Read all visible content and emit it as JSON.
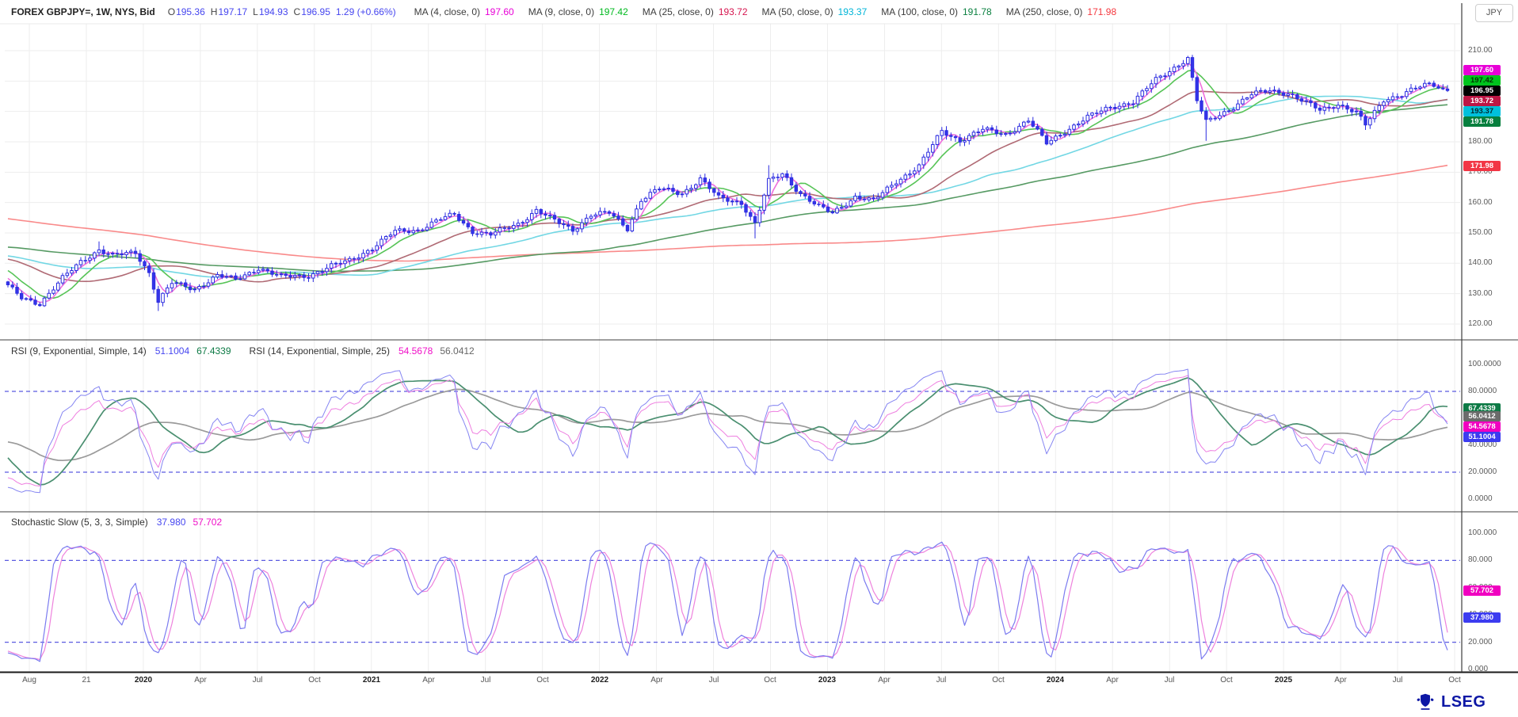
{
  "header": {
    "title": "FOREX GBPJPY=, 1W, NYS, Bid",
    "ohlc": [
      {
        "label": "O",
        "value": "195.36"
      },
      {
        "label": "H",
        "value": "197.17"
      },
      {
        "label": "L",
        "value": "194.93"
      },
      {
        "label": "C",
        "value": "196.95"
      }
    ],
    "change": "1.29 (+0.66%)",
    "value_color": "#4545ef",
    "ma_legend": [
      {
        "label": "MA (4, close, 0)",
        "value": "197.60",
        "value_num": 197.6,
        "color": "#e800d7",
        "line": "#ef6fdc",
        "badge_fg": "#ffffff"
      },
      {
        "label": "MA (9, close, 0)",
        "value": "197.42",
        "value_num": 197.42,
        "color": "#00b91f",
        "line": "#57c457",
        "badge_bg": "#00c41d",
        "badge_fg": "#003300"
      },
      {
        "label": "MA (25, close, 0)",
        "value": "193.72",
        "value_num": 193.72,
        "color": "#d6164f",
        "line": "#b06a74",
        "badge_bg": "#bd1644",
        "badge_fg": "#ffffff"
      },
      {
        "label": "MA (50, close, 0)",
        "value": "193.37",
        "value_num": 193.37,
        "color": "#00b5d8",
        "line": "#72d7e4",
        "badge_bg": "#00c0dc",
        "badge_fg": "#00222a"
      },
      {
        "label": "MA (100, close, 0)",
        "value": "191.78",
        "value_num": 191.78,
        "color": "#0b8040",
        "line": "#569a63",
        "badge_bg": "#067f3e",
        "badge_fg": "#ffffff"
      },
      {
        "label": "MA (250, close, 0)",
        "value": "171.98",
        "value_num": 171.98,
        "color": "#f5383f",
        "line": "#f98a8a",
        "badge_bg": "#f23645",
        "badge_fg": "#ffffff"
      }
    ],
    "currency_button": "JPY"
  },
  "main_panel": {
    "y_ticks": [
      {
        "v": 210,
        "t": "210.00"
      },
      {
        "v": 200,
        "t": "200.00"
      },
      {
        "v": 190,
        "t": "190.00"
      },
      {
        "v": 180,
        "t": "180.00"
      },
      {
        "v": 170,
        "t": "170.00"
      },
      {
        "v": 160,
        "t": "160.00"
      },
      {
        "v": 150,
        "t": "150.00"
      },
      {
        "v": 140,
        "t": "140.00"
      },
      {
        "v": 130,
        "t": "130.00"
      },
      {
        "v": 120,
        "t": "120.00"
      }
    ],
    "badges": [
      {
        "text": "197.60",
        "value": 197.6,
        "bg": "#e800d7",
        "fg": "#ffffff"
      },
      {
        "text": "197.42",
        "value": 197.42,
        "bg": "#00c41d",
        "fg": "#013501"
      },
      {
        "text": "196.95",
        "value": 196.95,
        "bg": "#000000",
        "fg": "#ffffff"
      },
      {
        "text": "193.72",
        "value": 193.72,
        "bg": "#bd1644",
        "fg": "#ffffff"
      },
      {
        "text": "193.37",
        "value": 193.37,
        "bg": "#00c0dc",
        "fg": "#002a31"
      },
      {
        "text": "191.78",
        "value": 191.78,
        "bg": "#067f3e",
        "fg": "#ffffff"
      },
      {
        "text": "171.98",
        "value": 171.98,
        "bg": "#f23645",
        "fg": "#ffffff"
      }
    ]
  },
  "rsi_panel": {
    "title1": "RSI (9, Exponential, Simple, 14)",
    "value1": "51.1004",
    "value1_color": "#4646f0",
    "value2": "67.4339",
    "value2_color": "#0d7a45",
    "title2": "RSI (14, Exponential, Simple, 25)",
    "value3": "54.5678",
    "value3_color": "#f010c8",
    "value4": "56.0412",
    "value4_color": "#666666",
    "y_ticks": [
      {
        "v": 100,
        "t": "100.0000"
      },
      {
        "v": 80,
        "t": "80.0000"
      },
      {
        "v": 60,
        "t": "60.0000"
      },
      {
        "v": 40,
        "t": "40.0000"
      },
      {
        "v": 20,
        "t": "20.0000"
      },
      {
        "v": 0,
        "t": "0.0000"
      }
    ],
    "badges": [
      {
        "text": "67.4339",
        "value": 67.4339,
        "bg": "#0d7a45",
        "fg": "#ffffff"
      },
      {
        "text": "56.0412",
        "value": 56.0412,
        "bg": "#6b6b6b",
        "fg": "#ffffff"
      },
      {
        "text": "54.5678",
        "value": 54.5678,
        "bg": "#f000c0",
        "fg": "#ffffff"
      },
      {
        "text": "51.1004",
        "value": 51.1004,
        "bg": "#3c3cf0",
        "fg": "#ffffff"
      }
    ],
    "thresholds": [
      80,
      20
    ]
  },
  "stoch_panel": {
    "title": "Stochastic Slow (5, 3, 3, Simple)",
    "value1": "37.980",
    "value1_color": "#4646f0",
    "value2": "57.702",
    "value2_color": "#f010c8",
    "y_ticks": [
      {
        "v": 100,
        "t": "100.000"
      },
      {
        "v": 80,
        "t": "80.000"
      },
      {
        "v": 60,
        "t": "60.000"
      },
      {
        "v": 40,
        "t": "40.000"
      },
      {
        "v": 20,
        "t": "20.000"
      },
      {
        "v": 0,
        "t": "0.000"
      }
    ],
    "badges": [
      {
        "text": "57.702",
        "value": 57.702,
        "bg": "#f000c0",
        "fg": "#ffffff"
      },
      {
        "text": "37.980",
        "value": 37.98,
        "bg": "#3c3cf0",
        "fg": "#ffffff"
      }
    ],
    "thresholds": [
      80,
      20
    ]
  },
  "x_axis": {
    "labels": [
      {
        "text": "Aug",
        "bold": false
      },
      {
        "text": "21",
        "bold": false
      },
      {
        "text": "2020",
        "bold": true
      },
      {
        "text": "Apr",
        "bold": false
      },
      {
        "text": "Jul",
        "bold": false
      },
      {
        "text": "Oct",
        "bold": false
      },
      {
        "text": "2021",
        "bold": true
      },
      {
        "text": "Apr",
        "bold": false
      },
      {
        "text": "Jul",
        "bold": false
      },
      {
        "text": "Oct",
        "bold": false
      },
      {
        "text": "2022",
        "bold": true
      },
      {
        "text": "Apr",
        "bold": false
      },
      {
        "text": "Jul",
        "bold": false
      },
      {
        "text": "Oct",
        "bold": false
      },
      {
        "text": "2023",
        "bold": true
      },
      {
        "text": "Apr",
        "bold": false
      },
      {
        "text": "Jul",
        "bold": false
      },
      {
        "text": "Oct",
        "bold": false
      },
      {
        "text": "2024",
        "bold": true
      },
      {
        "text": "Apr",
        "bold": false
      },
      {
        "text": "Jul",
        "bold": false
      },
      {
        "text": "Oct",
        "bold": false
      },
      {
        "text": "2025",
        "bold": true
      },
      {
        "text": "Apr",
        "bold": false
      },
      {
        "text": "Jul",
        "bold": false
      },
      {
        "text": "Oct",
        "bold": false
      }
    ]
  },
  "footer": {
    "brand": "LSEG",
    "brand_color": "#0d17a5"
  },
  "chart_data": {
    "type": "candlestick",
    "symbol": "FOREX GBPJPY=",
    "interval": "1W",
    "venue": "NYS",
    "side": "Bid",
    "x_range_labels": [
      "Aug 2019",
      "Oct 2025"
    ],
    "price_axis": {
      "min": 112,
      "max": 219,
      "tick_step": 10
    },
    "last_bar": {
      "open": 195.36,
      "high": 197.17,
      "low": 194.93,
      "close": 196.95,
      "change": 1.29,
      "change_pct": 0.66
    },
    "moving_averages": [
      {
        "period": 4,
        "source": "close",
        "offset": 0,
        "value": 197.6
      },
      {
        "period": 9,
        "source": "close",
        "offset": 0,
        "value": 197.42
      },
      {
        "period": 25,
        "source": "close",
        "offset": 0,
        "value": 193.72
      },
      {
        "period": 50,
        "source": "close",
        "offset": 0,
        "value": 193.37
      },
      {
        "period": 100,
        "source": "close",
        "offset": 0,
        "value": 191.78
      },
      {
        "period": 250,
        "source": "close",
        "offset": 0,
        "value": 171.98
      }
    ],
    "rsi": {
      "label": "RSI (9, Exponential, Simple, 14)",
      "rsi9": 51.1004,
      "rsi9_signal": 67.4339,
      "label2": "RSI (14, Exponential, Simple, 25)",
      "rsi14": 54.5678,
      "rsi14_signal": 56.0412,
      "overbought": 80,
      "oversold": 20,
      "axis": [
        0,
        100
      ]
    },
    "stochastic": {
      "label": "Stochastic Slow (5, 3, 3, Simple)",
      "k": 37.98,
      "d": 57.702,
      "overbought": 80,
      "oversold": 20,
      "axis": [
        0,
        100
      ]
    },
    "colors": {
      "candle": "#2c2ce0",
      "candle_down_fill": "#3434e8",
      "candle_up_fill": "#ffffff",
      "grid": "#ededed",
      "threshold_dash": "#5a5ae0",
      "separator": "#3c3c3c",
      "axis_line": "#1a1a1a",
      "rsi9_line": "#8585f2",
      "rsi9_signal_line": "#4a8f70",
      "rsi14_line": "#ee7fe0",
      "rsi14_signal_line": "#9a9a9a",
      "stoch_k_line": "#7b7bf0",
      "stoch_d_line": "#ee82dd"
    },
    "prehistory_anchors": [
      [
        -260,
        172
      ],
      [
        -250,
        175
      ],
      [
        -234,
        181
      ],
      [
        -215,
        194
      ],
      [
        -205,
        188
      ],
      [
        -195,
        180
      ],
      [
        -185,
        170
      ],
      [
        -172,
        158
      ],
      [
        -163,
        156
      ],
      [
        -160,
        134
      ],
      [
        -150,
        132
      ],
      [
        -141,
        128
      ],
      [
        -134,
        143
      ],
      [
        -126,
        140
      ],
      [
        -120,
        139
      ],
      [
        -110,
        144
      ],
      [
        -100,
        141
      ],
      [
        -88,
        149
      ],
      [
        -78,
        155
      ],
      [
        -68,
        151
      ],
      [
        -60,
        145
      ],
      [
        -48,
        142
      ],
      [
        -38,
        147
      ],
      [
        -30,
        142
      ],
      [
        -25,
        139
      ],
      [
        -16,
        146
      ],
      [
        -8,
        142
      ],
      [
        -2,
        136
      ]
    ],
    "weekly_close_anchors": [
      [
        0,
        132.5
      ],
      [
        3,
        128.5
      ],
      [
        7,
        126.8
      ],
      [
        12,
        135
      ],
      [
        16,
        140.5
      ],
      [
        20,
        144.5
      ],
      [
        23,
        142.5
      ],
      [
        28,
        143.5
      ],
      [
        31,
        137
      ],
      [
        33,
        127.5
      ],
      [
        36,
        133.5
      ],
      [
        41,
        131.5
      ],
      [
        46,
        136
      ],
      [
        50,
        134.5
      ],
      [
        55,
        138.5
      ],
      [
        60,
        135.5
      ],
      [
        66,
        136
      ],
      [
        71,
        139
      ],
      [
        75,
        141
      ],
      [
        80,
        145
      ],
      [
        85,
        150.5
      ],
      [
        90,
        151
      ],
      [
        95,
        154.5
      ],
      [
        98,
        156
      ],
      [
        102,
        150.5
      ],
      [
        106,
        149.5
      ],
      [
        112,
        153
      ],
      [
        116,
        157.5
      ],
      [
        120,
        154
      ],
      [
        124,
        151
      ],
      [
        128,
        156
      ],
      [
        132,
        156.5
      ],
      [
        136,
        151.5
      ],
      [
        139,
        161
      ],
      [
        143,
        164.5
      ],
      [
        148,
        163
      ],
      [
        152,
        167.8
      ],
      [
        156,
        161.5
      ],
      [
        161,
        160
      ],
      [
        164,
        153
      ],
      [
        167,
        167
      ],
      [
        170,
        169.5
      ],
      [
        174,
        163
      ],
      [
        178,
        158.5
      ],
      [
        181,
        156.5
      ],
      [
        186,
        162
      ],
      [
        190,
        160.5
      ],
      [
        195,
        167
      ],
      [
        200,
        172
      ],
      [
        205,
        183.5
      ],
      [
        209,
        180.5
      ],
      [
        214,
        184
      ],
      [
        219,
        182.5
      ],
      [
        224,
        187
      ],
      [
        228,
        179.5
      ],
      [
        232,
        183.5
      ],
      [
        237,
        188
      ],
      [
        242,
        191.5
      ],
      [
        247,
        193
      ],
      [
        252,
        200.5
      ],
      [
        256,
        204.5
      ],
      [
        259,
        207.5
      ],
      [
        261,
        193.5
      ],
      [
        263,
        186.5
      ],
      [
        266,
        189
      ],
      [
        269,
        191.5
      ],
      [
        273,
        195.5
      ],
      [
        277,
        197
      ],
      [
        281,
        196
      ],
      [
        284,
        193.5
      ],
      [
        288,
        190.5
      ],
      [
        292,
        192.5
      ],
      [
        296,
        189.5
      ],
      [
        298,
        185.5
      ],
      [
        302,
        194
      ],
      [
        306,
        195.5
      ],
      [
        309,
        197.5
      ],
      [
        312,
        199
      ],
      [
        314,
        197.8
      ],
      [
        316,
        196.95
      ]
    ],
    "wick_overrides": {
      "20": [
        147.2,
        null
      ],
      "33": [
        null,
        124.3
      ],
      "164": [
        null,
        148.2
      ],
      "167": [
        172.3,
        null
      ],
      "259": [
        208.3,
        null
      ],
      "263": [
        null,
        180.3
      ],
      "298": [
        null,
        183.9
      ],
      "312": [
        199.9,
        null
      ]
    }
  }
}
